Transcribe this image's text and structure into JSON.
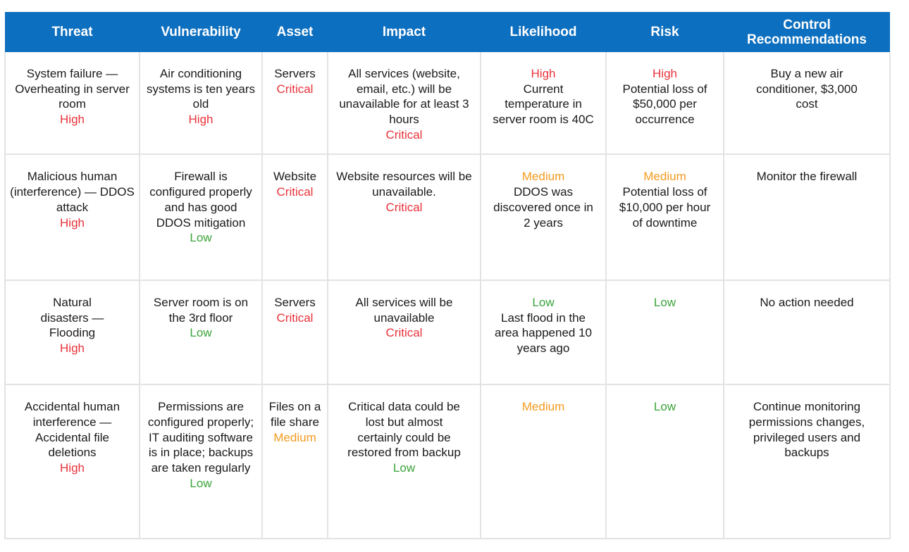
{
  "headers": [
    "Threat",
    "Vulnerability",
    "Asset",
    "Impact",
    "Likelihood",
    "Risk",
    "Control Recommendations"
  ],
  "colors": {
    "header_bg": "#0d6fbf",
    "high": "#e8323a",
    "critical": "#e8323a",
    "medium": "#f39a1e",
    "low": "#3aa33a"
  },
  "rows": [
    {
      "threat": {
        "text": "System failure — Overheating in server room",
        "level": "High"
      },
      "vulnerability": {
        "text": "Air conditioning systems is ten years old",
        "level": "High"
      },
      "asset": {
        "text": "Servers",
        "level": "Critical"
      },
      "impact": {
        "text": "All services (website, email, etc.) will be unavailable for at least 3 hours",
        "level": "Critical"
      },
      "likelihood": {
        "level": "High",
        "text": "Current temperature in server room is 40C"
      },
      "risk": {
        "level": "High",
        "text": "Potential loss of $50,000 per occurrence"
      },
      "control": {
        "text": "Buy a new air conditioner, $3,000 cost"
      }
    },
    {
      "threat": {
        "text": "Malicious human (interference) — DDOS attack",
        "level": "High"
      },
      "vulnerability": {
        "text": "Firewall is configured properly and has good DDOS mitigation",
        "level": "Low"
      },
      "asset": {
        "text": "Website",
        "level": "Critical"
      },
      "impact": {
        "text": "Website resources will be unavailable.",
        "level": "Critical"
      },
      "likelihood": {
        "level": "Medium",
        "text": "DDOS was discovered once in 2 years"
      },
      "risk": {
        "level": "Medium",
        "text": "Potential loss of $10,000 per hour of downtime"
      },
      "control": {
        "text": "Monitor the firewall"
      }
    },
    {
      "threat": {
        "text": "Natural disasters — Flooding",
        "level": "High"
      },
      "vulnerability": {
        "text": "Server room is on the 3rd floor",
        "level": "Low"
      },
      "asset": {
        "text": "Servers",
        "level": "Critical"
      },
      "impact": {
        "text": "All services will be unavailable",
        "level": "Critical"
      },
      "likelihood": {
        "level": "Low",
        "text": "Last flood in the area happened 10 years ago"
      },
      "risk": {
        "level": "Low",
        "text": ""
      },
      "control": {
        "text": "No action needed"
      }
    },
    {
      "threat": {
        "text": "Accidental human interference — Accidental file deletions",
        "level": "High"
      },
      "vulnerability": {
        "text": "Permissions are configured properly; IT auditing software is in place; backups are taken regularly",
        "level": "Low"
      },
      "asset": {
        "text": "Files on a file share",
        "level": "Medium"
      },
      "impact": {
        "text": "Critical data could be lost but almost certainly could be restored from backup",
        "level": "Low"
      },
      "likelihood": {
        "level": "Medium",
        "text": ""
      },
      "risk": {
        "level": "Low",
        "text": ""
      },
      "control": {
        "text": "Continue monitoring permissions changes, privileged users and backups"
      }
    }
  ]
}
